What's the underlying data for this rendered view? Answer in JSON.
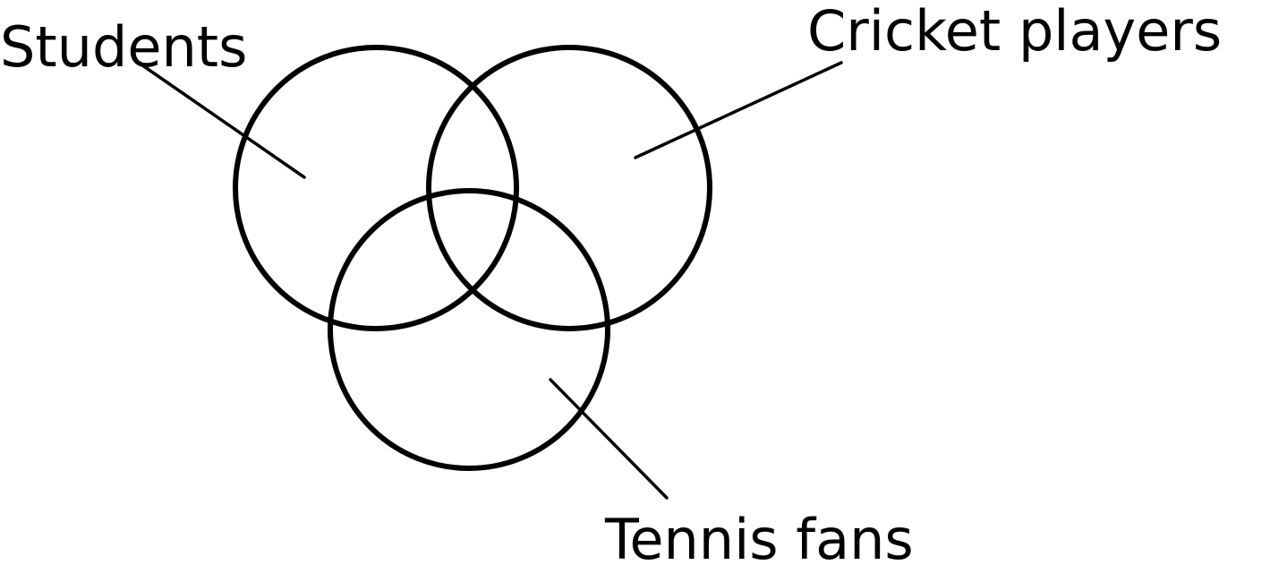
{
  "diagram": {
    "type": "venn",
    "stroke_color": "#000000",
    "background_color": "#ffffff",
    "sets": [
      {
        "id": "students",
        "label": "Students"
      },
      {
        "id": "cricket-players",
        "label": "Cricket players"
      },
      {
        "id": "tennis-fans",
        "label": "Tennis fans"
      }
    ]
  }
}
